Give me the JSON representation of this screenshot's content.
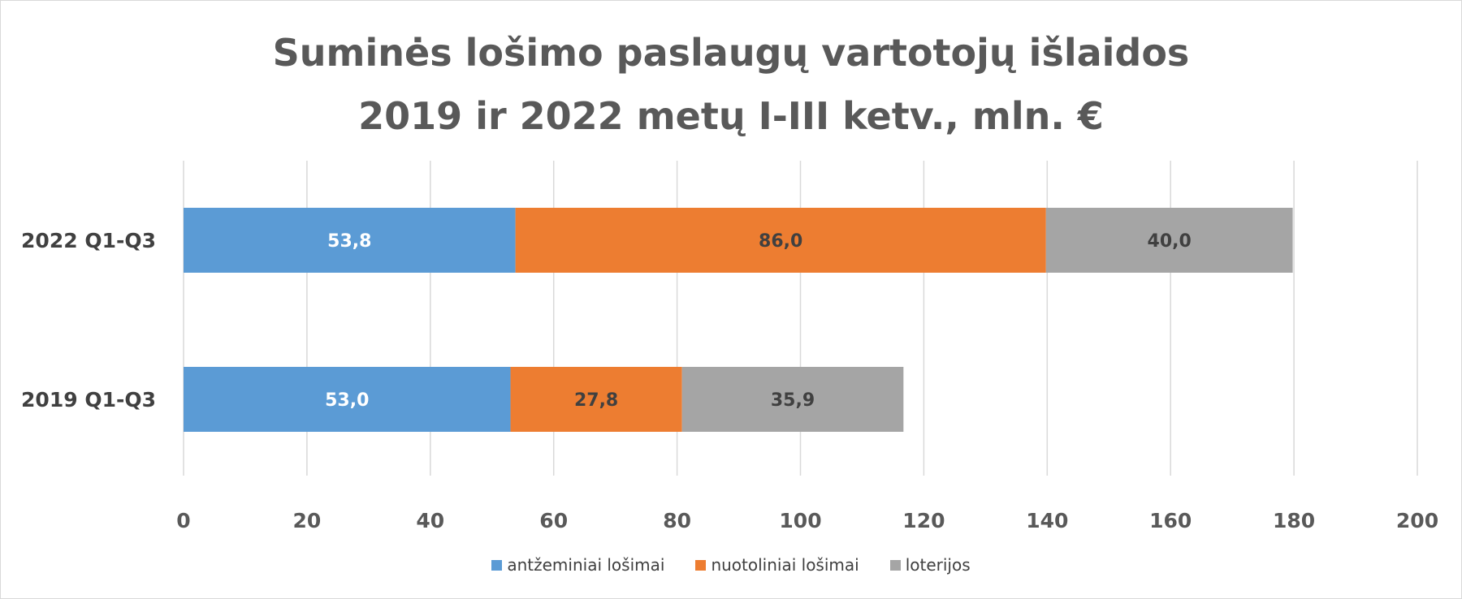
{
  "chart_data": {
    "type": "bar",
    "orientation": "horizontal",
    "stacked": true,
    "title_lines": [
      "Suminės lošimo paslaugų vartotojų išlaidos",
      "2019 ir 2022 metų I-III ketv., mln. €"
    ],
    "categories": [
      "2022 Q1-Q3",
      "2019 Q1-Q3"
    ],
    "series": [
      {
        "name": "antžeminiai lošimai",
        "values": [
          53.8,
          53.0
        ],
        "labels": [
          "53,8",
          "53,0"
        ],
        "color": "#5b9bd5",
        "label_color": "#ffffff"
      },
      {
        "name": "nuotoliniai lošimai",
        "values": [
          86.0,
          27.8
        ],
        "labels": [
          "86,0",
          "27,8"
        ],
        "color": "#ed7d31",
        "label_color": "#404040"
      },
      {
        "name": "loterijos",
        "values": [
          40.0,
          35.9
        ],
        "labels": [
          "40,0",
          "35,9"
        ],
        "color": "#a5a5a5",
        "label_color": "#404040"
      }
    ],
    "xlim": [
      0,
      200
    ],
    "xticks": [
      0,
      20,
      40,
      60,
      80,
      100,
      120,
      140,
      160,
      180,
      200
    ],
    "grid": true,
    "legend_position": "bottom"
  }
}
